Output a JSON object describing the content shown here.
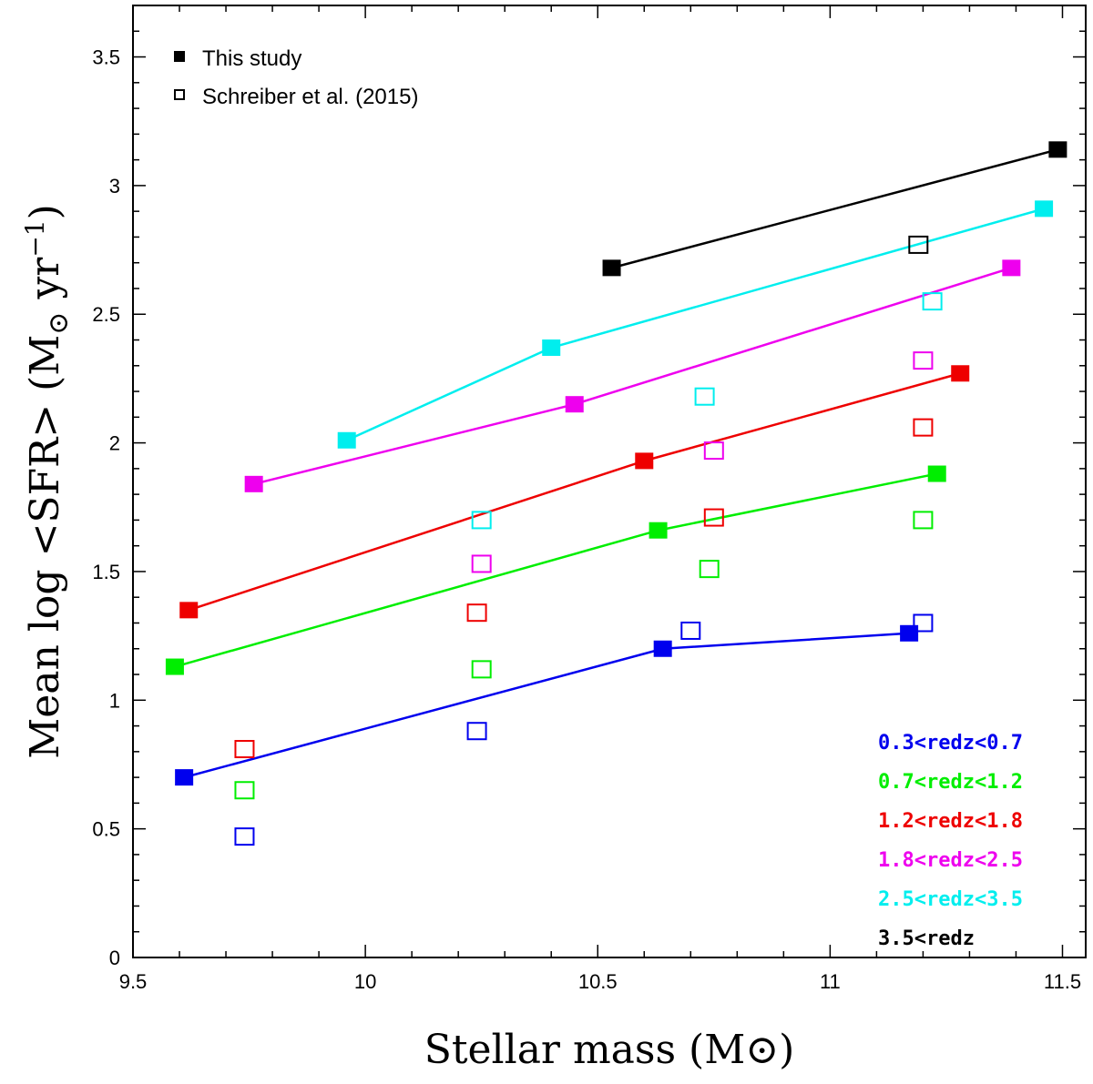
{
  "chart_data": {
    "type": "scatter",
    "xlabel": "Stellar mass (M⊙)",
    "ylabel_main": "Mean log <SFR> (M",
    "ylabel_sub": "⊙",
    "ylabel_mid": " yr",
    "ylabel_sup": "−1",
    "ylabel_end": ")",
    "xlim": [
      9.5,
      11.55
    ],
    "ylim": [
      0,
      3.7
    ],
    "x_ticks": [
      {
        "value": 9.5,
        "label": "9.5"
      },
      {
        "value": 10,
        "label": "10"
      },
      {
        "value": 10.5,
        "label": "10.5"
      },
      {
        "value": 11,
        "label": "11"
      },
      {
        "value": 11.5,
        "label": "11.5"
      }
    ],
    "y_ticks": [
      {
        "value": 0,
        "label": "0"
      },
      {
        "value": 0.5,
        "label": "0.5"
      },
      {
        "value": 1,
        "label": "1"
      },
      {
        "value": 1.5,
        "label": "1.5"
      },
      {
        "value": 2,
        "label": "2"
      },
      {
        "value": 2.5,
        "label": "2.5"
      },
      {
        "value": 3,
        "label": "3"
      },
      {
        "value": 3.5,
        "label": "3.5"
      }
    ],
    "legend": [
      {
        "label": "This study",
        "marker": "filled-square"
      },
      {
        "label": "Schreiber et al. (2015)",
        "marker": "open-square"
      }
    ],
    "series": [
      {
        "name": "0.3<redz<0.7",
        "color": "#0000ee",
        "this_study": [
          [
            9.61,
            0.7
          ],
          [
            10.64,
            1.2
          ],
          [
            11.17,
            1.26
          ]
        ],
        "schreiber": [
          [
            9.74,
            0.47
          ],
          [
            10.24,
            0.88
          ],
          [
            10.7,
            1.27
          ],
          [
            11.2,
            1.3
          ]
        ]
      },
      {
        "name": "0.7<redz<1.2",
        "color": "#00ee00",
        "this_study": [
          [
            9.59,
            1.13
          ],
          [
            10.63,
            1.66
          ],
          [
            11.23,
            1.88
          ]
        ],
        "schreiber": [
          [
            9.74,
            0.65
          ],
          [
            10.25,
            1.12
          ],
          [
            10.74,
            1.51
          ],
          [
            11.2,
            1.7
          ]
        ]
      },
      {
        "name": "1.2<redz<1.8",
        "color": "#ee0000",
        "this_study": [
          [
            9.62,
            1.35
          ],
          [
            10.6,
            1.93
          ],
          [
            11.28,
            2.27
          ]
        ],
        "schreiber": [
          [
            9.74,
            0.81
          ],
          [
            10.24,
            1.34
          ],
          [
            10.75,
            1.71
          ],
          [
            11.2,
            2.06
          ]
        ]
      },
      {
        "name": "1.8<redz<2.5",
        "color": "#ee00ee",
        "this_study": [
          [
            9.76,
            1.84
          ],
          [
            10.45,
            2.15
          ],
          [
            11.39,
            2.68
          ]
        ],
        "schreiber": [
          [
            10.25,
            1.53
          ],
          [
            10.75,
            1.97
          ],
          [
            11.2,
            2.32
          ]
        ]
      },
      {
        "name": "2.5<redz<3.5",
        "color": "#00eeee",
        "this_study": [
          [
            9.96,
            2.01
          ],
          [
            10.4,
            2.37
          ],
          [
            11.46,
            2.91
          ]
        ],
        "schreiber": [
          [
            10.25,
            1.7
          ],
          [
            10.73,
            2.18
          ],
          [
            11.22,
            2.55
          ]
        ]
      },
      {
        "name": "3.5<redz",
        "color": "#000000",
        "this_study": [
          [
            10.53,
            2.68
          ],
          [
            11.49,
            3.14
          ]
        ],
        "schreiber": [
          [
            11.19,
            2.77
          ]
        ]
      }
    ]
  }
}
